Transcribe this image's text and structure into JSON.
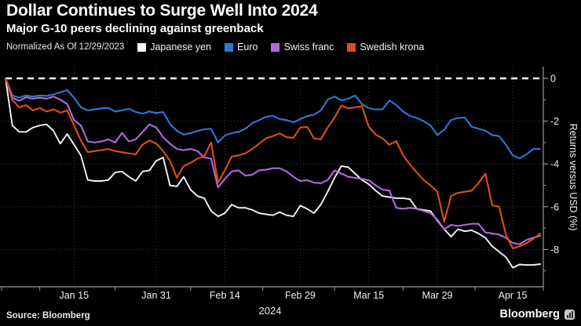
{
  "header": {
    "title": "Dollar Continues to Surge Well Into 2024",
    "subtitle": "Major G-10 peers declining against greenback"
  },
  "legend": {
    "note": "Normalized As Of 12/29/2023"
  },
  "footer": {
    "source": "Source: Bloomberg",
    "brand": "Bloomberg"
  },
  "chart_data": {
    "type": "line",
    "title": "Dollar Continues to Surge Well Into 2024",
    "subtitle": "Major G-10 peers declining against greenback",
    "normalized_note": "Normalized As Of 12/29/2023",
    "xlabel": "2024",
    "ylabel": "Returns versus USD (%)",
    "x_unit": "trading days since 12/29/2023",
    "x_days_total": 78,
    "x_tick_labels": [
      "Jan 15",
      "Jan 31",
      "Feb 14",
      "Feb 29",
      "Mar 15",
      "Mar 29",
      "Apr 15"
    ],
    "x_tick_days": [
      10,
      22,
      32,
      43,
      53,
      63,
      74
    ],
    "year_label": "2024",
    "y_ticks": [
      0,
      -2,
      -4,
      -6,
      -8
    ],
    "y_minor_ticks": [
      -1,
      -3,
      -5,
      -7,
      -9
    ],
    "ylim": [
      -9.74,
      0.55
    ],
    "zero_line": true,
    "grid": "dotted",
    "legend_position": "top",
    "colors": {
      "axis": "#9a9a9a",
      "grid": "#3f3f3f",
      "zero_line": "#ffffff",
      "background": "#000000"
    },
    "series": [
      {
        "name": "Japanese yen",
        "color": "#f4f4f4",
        "values": [
          0,
          -2.2,
          -2.5,
          -2.5,
          -2.3,
          -2.2,
          -2.15,
          -2.45,
          -3.05,
          -2.6,
          -3.1,
          -3.6,
          -4.75,
          -4.8,
          -4.8,
          -4.75,
          -4.4,
          -4.35,
          -4.6,
          -4.8,
          -4.35,
          -4.3,
          -3.85,
          -3.7,
          -5.0,
          -5.05,
          -4.6,
          -5.2,
          -5.5,
          -5.6,
          -6.2,
          -6.45,
          -6.3,
          -5.9,
          -6.05,
          -6.05,
          -6.15,
          -6.3,
          -6.35,
          -6.4,
          -6.25,
          -6.4,
          -6.45,
          -5.95,
          -6.1,
          -6.3,
          -5.9,
          -5.3,
          -4.65,
          -4.1,
          -4.15,
          -4.45,
          -4.75,
          -4.95,
          -5.25,
          -5.5,
          -5.55,
          -5.6,
          -5.6,
          -5.65,
          -6.1,
          -6.15,
          -6.2,
          -6.65,
          -7.05,
          -7.4,
          -7.05,
          -7.15,
          -7.1,
          -7.25,
          -7.45,
          -7.85,
          -8.1,
          -8.35,
          -8.85,
          -8.7,
          -8.72,
          -8.72,
          -8.68
        ]
      },
      {
        "name": "Euro",
        "color": "#2e78d2",
        "values": [
          0,
          -0.8,
          -0.9,
          -0.8,
          -0.85,
          -0.8,
          -0.82,
          -0.75,
          -0.65,
          -0.55,
          -0.9,
          -1.35,
          -1.5,
          -1.45,
          -1.4,
          -1.38,
          -1.55,
          -1.5,
          -1.42,
          -1.57,
          -1.65,
          -1.55,
          -1.62,
          -1.57,
          -2.13,
          -2.45,
          -2.63,
          -2.56,
          -2.46,
          -2.38,
          -2.35,
          -3.0,
          -2.67,
          -2.56,
          -2.5,
          -2.35,
          -2.1,
          -1.95,
          -1.8,
          -1.75,
          -1.9,
          -1.95,
          -2.05,
          -1.9,
          -1.77,
          -1.7,
          -1.5,
          -1.0,
          -0.85,
          -1.03,
          -0.95,
          -0.8,
          -1.2,
          -1.4,
          -1.45,
          -1.45,
          -1.03,
          -1.25,
          -1.55,
          -1.75,
          -1.85,
          -2.0,
          -2.2,
          -2.65,
          -2.4,
          -1.95,
          -1.85,
          -1.83,
          -2.26,
          -2.35,
          -2.45,
          -2.65,
          -2.7,
          -3.1,
          -3.6,
          -3.74,
          -3.55,
          -3.3,
          -3.3
        ]
      },
      {
        "name": "Swiss franc",
        "color": "#b06ae0",
        "values": [
          0,
          -0.9,
          -1.05,
          -0.88,
          -0.95,
          -0.9,
          -0.95,
          -0.85,
          -1.0,
          -1.2,
          -1.95,
          -2.2,
          -2.95,
          -3.0,
          -2.95,
          -2.85,
          -3.0,
          -2.55,
          -2.95,
          -2.85,
          -2.5,
          -2.15,
          -2.3,
          -2.75,
          -3.05,
          -3.3,
          -3.36,
          -3.3,
          -3.4,
          -3.7,
          -3.75,
          -5.1,
          -4.7,
          -4.35,
          -4.3,
          -4.55,
          -4.5,
          -4.3,
          -4.27,
          -4.2,
          -4.2,
          -4.35,
          -4.6,
          -4.8,
          -4.76,
          -4.87,
          -4.9,
          -4.76,
          -4.3,
          -4.45,
          -4.6,
          -4.65,
          -4.7,
          -4.76,
          -5.0,
          -5.2,
          -5.25,
          -6.05,
          -6.1,
          -6.05,
          -6.1,
          -6.2,
          -6.3,
          -6.6,
          -7.05,
          -6.85,
          -6.9,
          -6.85,
          -6.8,
          -6.8,
          -7.2,
          -7.25,
          -7.3,
          -7.45,
          -7.7,
          -7.75,
          -7.55,
          -7.45,
          -7.35
        ]
      },
      {
        "name": "Swedish krona",
        "color": "#dc5012",
        "values": [
          0,
          -1.0,
          -1.35,
          -1.25,
          -1.5,
          -1.38,
          -1.55,
          -1.45,
          -1.6,
          -1.5,
          -2.2,
          -2.9,
          -3.45,
          -3.4,
          -3.35,
          -3.3,
          -3.4,
          -3.45,
          -3.5,
          -3.55,
          -3.1,
          -2.9,
          -3.05,
          -3.4,
          -3.85,
          -4.65,
          -4.1,
          -3.95,
          -3.75,
          -3.65,
          -3.0,
          -4.87,
          -4.3,
          -3.66,
          -3.6,
          -3.5,
          -3.3,
          -3.05,
          -2.8,
          -2.7,
          -2.57,
          -2.75,
          -2.78,
          -2.3,
          -2.27,
          -2.8,
          -2.85,
          -2.3,
          -1.83,
          -1.28,
          -1.4,
          -1.35,
          -1.3,
          -2.26,
          -2.63,
          -2.8,
          -3.1,
          -2.93,
          -3.6,
          -4.03,
          -4.4,
          -4.75,
          -5.0,
          -5.3,
          -6.7,
          -5.5,
          -5.35,
          -5.3,
          -5.25,
          -4.9,
          -4.45,
          -5.93,
          -6.0,
          -7.3,
          -7.95,
          -7.85,
          -7.7,
          -7.5,
          -7.25
        ]
      }
    ]
  }
}
